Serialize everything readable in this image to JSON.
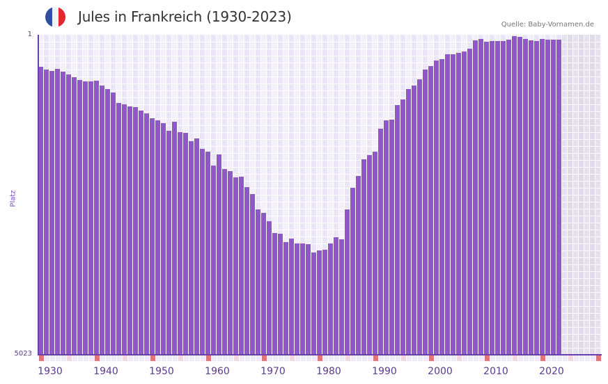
{
  "header": {
    "title": "Jules in Frankreich (1930-2023)",
    "source": "Quelle: Baby-Vornamen.de",
    "flag_icon": "france-flag-icon",
    "flag_colors": [
      "#2f4fa3",
      "#f2f2f2",
      "#e4262f"
    ]
  },
  "colors": {
    "bar": "#8e58c8",
    "axis": "#6a3fb0",
    "grid_a": "#f3effb",
    "grid_b": "#ebe6f7",
    "future_a": "#e6e1ef",
    "future_b": "#e0daeb",
    "decade_marker": "#e8717a",
    "half_decade_marker": "#f5d6e0",
    "year_marker": "#efeaf8",
    "tick_text": "#5b3b8c"
  },
  "chart_data": {
    "type": "bar",
    "title": "Jules in Frankreich (1930-2023)",
    "xlabel": "",
    "ylabel": "Platz",
    "y_inverted": true,
    "ylim": [
      5023,
      1
    ],
    "xlim": [
      1930,
      2030
    ],
    "grid": true,
    "legend": null,
    "source": "Quelle: Baby-Vornamen.de",
    "y_ticks": [
      "1",
      "5023"
    ],
    "x_ticks": [
      "1930",
      "1940",
      "1950",
      "1960",
      "1970",
      "1980",
      "1990",
      "2000",
      "2010",
      "2020"
    ],
    "categories": [
      1930,
      1931,
      1932,
      1933,
      1934,
      1935,
      1936,
      1937,
      1938,
      1939,
      1940,
      1941,
      1942,
      1943,
      1944,
      1945,
      1946,
      1947,
      1948,
      1949,
      1950,
      1951,
      1952,
      1953,
      1954,
      1955,
      1956,
      1957,
      1958,
      1959,
      1960,
      1961,
      1962,
      1963,
      1964,
      1965,
      1966,
      1967,
      1968,
      1969,
      1970,
      1971,
      1972,
      1973,
      1974,
      1975,
      1976,
      1977,
      1978,
      1979,
      1980,
      1981,
      1982,
      1983,
      1984,
      1985,
      1986,
      1987,
      1988,
      1989,
      1990,
      1991,
      1992,
      1993,
      1994,
      1995,
      1996,
      1997,
      1998,
      1999,
      2000,
      2001,
      2002,
      2003,
      2004,
      2005,
      2006,
      2007,
      2008,
      2009,
      2010,
      2011,
      2012,
      2013,
      2014,
      2015,
      2016,
      2017,
      2018,
      2019,
      2020,
      2021,
      2022,
      2023
    ],
    "series": [
      {
        "name": "Platz (Rang)",
        "values": [
          503,
          547,
          569,
          536,
          580,
          623,
          667,
          711,
          732,
          732,
          722,
          798,
          853,
          907,
          1071,
          1093,
          1125,
          1136,
          1191,
          1235,
          1311,
          1344,
          1387,
          1508,
          1366,
          1529,
          1540,
          1671,
          1628,
          1791,
          1835,
          2053,
          1879,
          2108,
          2141,
          2239,
          2228,
          2392,
          2501,
          2741,
          2796,
          2927,
          3113,
          3123,
          3254,
          3200,
          3277,
          3277,
          3287,
          3418,
          3386,
          3375,
          3277,
          3178,
          3211,
          2741,
          2403,
          2217,
          1955,
          1890,
          1835,
          1475,
          1344,
          1333,
          1104,
          1016,
          853,
          798,
          700,
          547,
          492,
          405,
          383,
          307,
          307,
          285,
          263,
          219,
          88,
          66,
          110,
          99,
          99,
          99,
          77,
          23,
          34,
          66,
          88,
          99,
          66,
          77,
          77,
          77
        ]
      }
    ]
  }
}
